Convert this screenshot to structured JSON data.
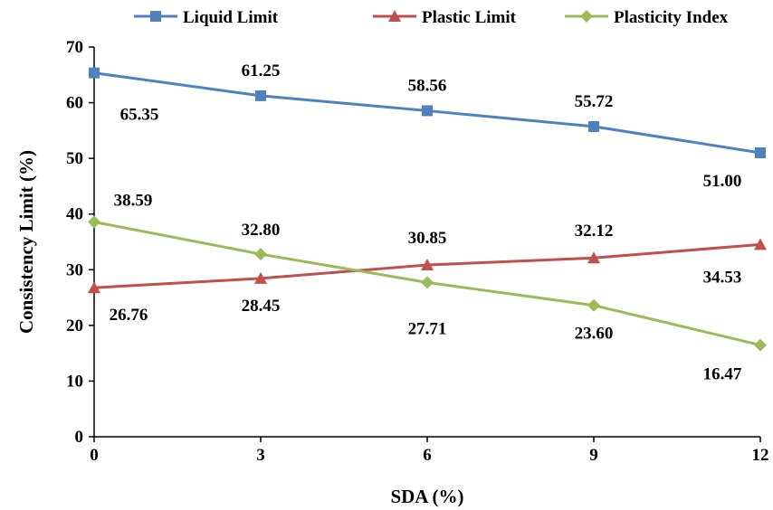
{
  "chart_data": {
    "type": "line",
    "title": "",
    "xlabel": "SDA (%)",
    "ylabel": "Consistency Limit (%)",
    "x": [
      0,
      3,
      6,
      9,
      12
    ],
    "xlim": [
      0,
      12
    ],
    "ylim": [
      0,
      70
    ],
    "xticks": [
      0,
      3,
      6,
      9,
      12
    ],
    "yticks": [
      0,
      10,
      20,
      30,
      40,
      50,
      60,
      70
    ],
    "grid": false,
    "legend_position": "top",
    "series": [
      {
        "name": "Liquid Limit",
        "color": "#4F81BD",
        "marker": "square",
        "values": [
          65.35,
          61.25,
          58.56,
          55.72,
          51.0
        ],
        "labels": [
          "65.35",
          "61.25",
          "58.56",
          "55.72",
          "51.00"
        ]
      },
      {
        "name": "Plastic Limit",
        "color": "#C0504D",
        "marker": "triangle",
        "values": [
          26.76,
          28.45,
          30.85,
          32.12,
          34.53
        ],
        "labels": [
          "26.76",
          "28.45",
          "30.85",
          "32.12",
          "34.53"
        ]
      },
      {
        "name": "Plasticity Index",
        "color": "#9BBB59",
        "marker": "diamond",
        "values": [
          38.59,
          32.8,
          27.71,
          23.6,
          16.47
        ],
        "labels": [
          "38.59",
          "32.80",
          "27.71",
          "23.60",
          "16.47"
        ]
      }
    ]
  }
}
